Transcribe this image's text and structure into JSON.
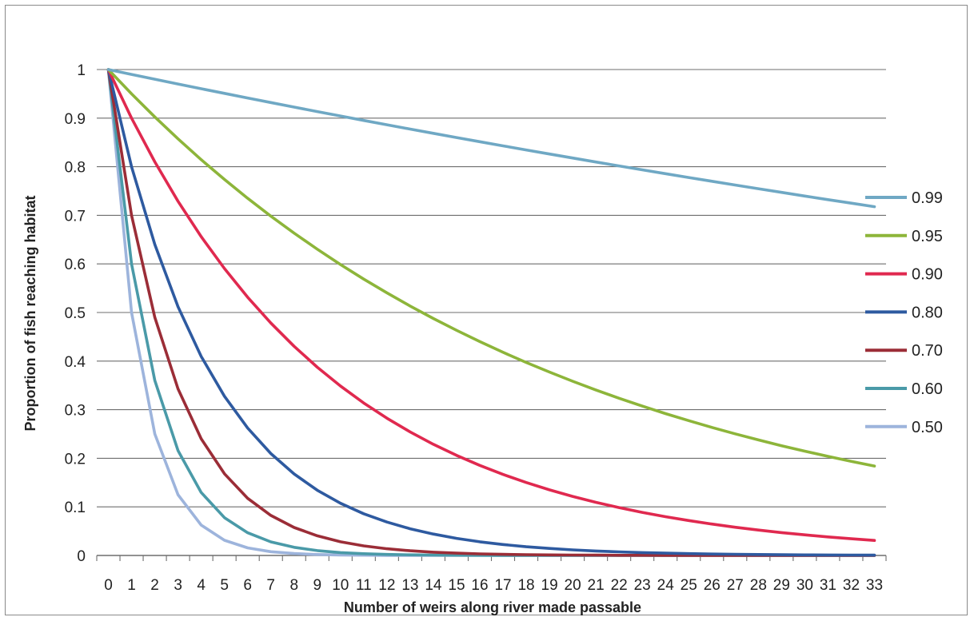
{
  "chart_data": {
    "type": "line",
    "xlabel": "Number of weirs along river made passable",
    "ylabel": "Proportion of fish reaching habitat",
    "x": [
      0,
      1,
      2,
      3,
      4,
      5,
      6,
      7,
      8,
      9,
      10,
      11,
      12,
      13,
      14,
      15,
      16,
      17,
      18,
      19,
      20,
      21,
      22,
      23,
      24,
      25,
      26,
      27,
      28,
      29,
      30,
      31,
      32,
      33
    ],
    "xlim": [
      0,
      33
    ],
    "ylim": [
      0,
      1
    ],
    "yticks": [
      "0",
      "0.1",
      "0.2",
      "0.3",
      "0.4",
      "0.5",
      "0.6",
      "0.7",
      "0.8",
      "0.9",
      "1"
    ],
    "grid": true,
    "legend_position": "right",
    "series": [
      {
        "name": "0.99",
        "color": "#6fa8c4",
        "values": [
          1,
          0.99,
          0.9801,
          0.9703,
          0.9606,
          0.951,
          0.9415,
          0.9321,
          0.9227,
          0.9135,
          0.9044,
          0.8953,
          0.8864,
          0.8775,
          0.8687,
          0.86,
          0.8515,
          0.8429,
          0.8345,
          0.8262,
          0.8179,
          0.8097,
          0.8016,
          0.7936,
          0.7857,
          0.7778,
          0.77,
          0.7623,
          0.7547,
          0.7472,
          0.7397,
          0.7323,
          0.725,
          0.7177
        ]
      },
      {
        "name": "0.95",
        "color": "#8db53a",
        "values": [
          1,
          0.95,
          0.9025,
          0.8574,
          0.8145,
          0.7738,
          0.7351,
          0.6983,
          0.6634,
          0.6302,
          0.5987,
          0.5688,
          0.5404,
          0.5133,
          0.4877,
          0.4633,
          0.4401,
          0.4181,
          0.3972,
          0.3774,
          0.3585,
          0.3406,
          0.3235,
          0.3074,
          0.292,
          0.2774,
          0.2635,
          0.2503,
          0.2378,
          0.2259,
          0.2146,
          0.2039,
          0.1937,
          0.184
        ]
      },
      {
        "name": "0.90",
        "color": "#e0294f",
        "values": [
          1,
          0.9,
          0.81,
          0.729,
          0.6561,
          0.5905,
          0.5314,
          0.4783,
          0.4305,
          0.3874,
          0.3487,
          0.3138,
          0.2824,
          0.2542,
          0.2288,
          0.2059,
          0.1853,
          0.1668,
          0.1501,
          0.1351,
          0.1216,
          0.1094,
          0.0985,
          0.0886,
          0.0798,
          0.0718,
          0.0646,
          0.0581,
          0.0523,
          0.0471,
          0.0424,
          0.0382,
          0.0343,
          0.0309
        ]
      },
      {
        "name": "0.80",
        "color": "#2e5aa0",
        "values": [
          1,
          0.8,
          0.64,
          0.512,
          0.4096,
          0.3277,
          0.2621,
          0.2097,
          0.1678,
          0.1342,
          0.1074,
          0.0859,
          0.0687,
          0.055,
          0.044,
          0.0352,
          0.0281,
          0.0225,
          0.018,
          0.0144,
          0.0115,
          0.0092,
          0.0074,
          0.0059,
          0.0047,
          0.0038,
          0.003,
          0.0024,
          0.0019,
          0.0015,
          0.0012,
          0.001,
          0.0008,
          0.0006
        ]
      },
      {
        "name": "0.70",
        "color": "#9b2d37",
        "values": [
          1,
          0.7,
          0.49,
          0.343,
          0.2401,
          0.1681,
          0.1176,
          0.0824,
          0.0576,
          0.0404,
          0.0282,
          0.0198,
          0.0138,
          0.0097,
          0.0068,
          0.0047,
          0.0033,
          0.0023,
          0.0016,
          0.0011,
          0.0008,
          0.0006,
          0.0004,
          0.0003,
          0.0002,
          0.0001,
          0.0001,
          0.0001,
          0,
          0,
          0,
          0,
          0,
          0
        ]
      },
      {
        "name": "0.60",
        "color": "#4a9aa8",
        "values": [
          1,
          0.6,
          0.36,
          0.216,
          0.1296,
          0.0778,
          0.0467,
          0.028,
          0.0168,
          0.0101,
          0.006,
          0.0036,
          0.0022,
          0.0013,
          0.0008,
          0.0005,
          0.0003,
          0.0002,
          0.0001,
          0.0001,
          0,
          0,
          0,
          0,
          0,
          0,
          0,
          0,
          0,
          0,
          0,
          0,
          0,
          0
        ]
      },
      {
        "name": "0.50",
        "color": "#9db4dc",
        "values": [
          1,
          0.5,
          0.25,
          0.125,
          0.0625,
          0.0313,
          0.0156,
          0.0078,
          0.0039,
          0.002,
          0.001,
          0.0005,
          0.0002,
          0.0001,
          0.0001,
          0,
          0,
          0,
          0,
          0,
          0,
          0,
          0,
          0,
          0,
          0,
          0,
          0,
          0,
          0,
          0,
          0,
          0,
          0
        ]
      }
    ]
  }
}
